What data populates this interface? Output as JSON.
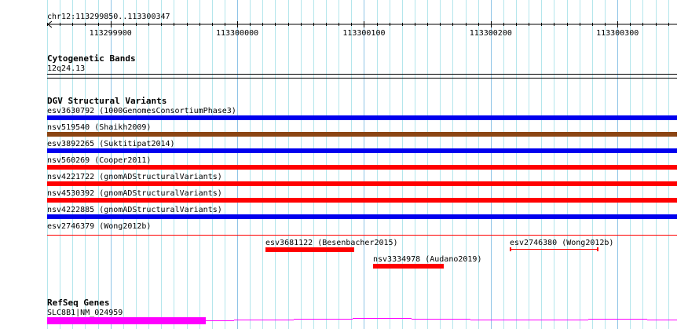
{
  "ruler": {
    "range_label": "chr12:113299850..113300347",
    "start": 113299850,
    "end": 113300347,
    "ticks": [
      "113299900",
      "113300000",
      "113300100",
      "113300200",
      "113300300"
    ]
  },
  "tracks": {
    "cytoband": {
      "title": "Cytogenetic Bands",
      "band": "12q24.13"
    },
    "dgv": {
      "title": "DGV Structural Variants",
      "full_rows": [
        {
          "label": "esv3630792 (1000GenomesConsortiumPhase3)",
          "color": "#0000ee"
        },
        {
          "label": "nsv519540 (Shaikh2009)",
          "color": "#8b4513"
        },
        {
          "label": "esv3892265 (Suktitipat2014)",
          "color": "#0000ee"
        },
        {
          "label": "nsv560269 (Cooper2011)",
          "color": "#ff0000"
        },
        {
          "label": "nsv4221722 (gnomADStructuralVariants)",
          "color": "#ff0000"
        },
        {
          "label": "nsv4530392 (gnomADStructuralVariants)",
          "color": "#ff0000"
        },
        {
          "label": "nsv4222885 (gnomADStructuralVariants)",
          "color": "#0000ee"
        },
        {
          "label": "esv2746379 (Wong2012b)",
          "color": "#ff0000",
          "thin": true
        }
      ],
      "partial": [
        {
          "label": "esv3681122 (Besenbacher2015)",
          "start": 113300022,
          "end": 113300092,
          "color": "#ff0000"
        },
        {
          "label": "esv2746380 (Wong2012b)",
          "start": 113300215,
          "end": 113300285,
          "color": "#ff0000",
          "thin": true
        },
        {
          "label": "nsv3334978 (Audano2019)",
          "start": 113300107,
          "end": 113300163,
          "color": "#ff0000"
        }
      ]
    },
    "refseq": {
      "title": "RefSeq Genes",
      "gene": "SLC8B1|NM_024959",
      "color": "#ff00ff"
    }
  }
}
